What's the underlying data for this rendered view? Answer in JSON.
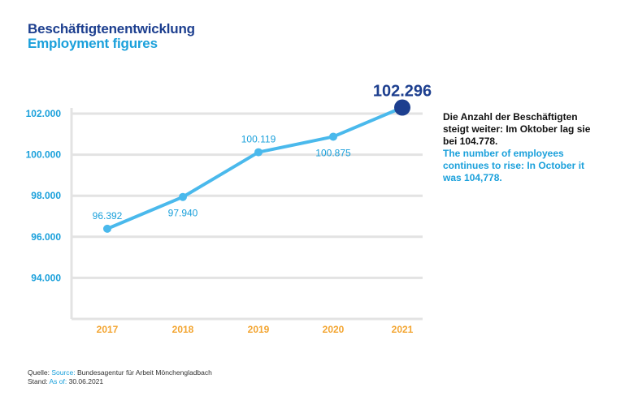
{
  "title_de": "Beschäftigtenentwicklung",
  "title_en": "Employment figures",
  "note": {
    "de": "Die Anzahl der Beschäftigten steigt weiter: Im Oktober lag sie bei 104.778.",
    "en": "The number of employees continues to rise: In October it was 104,778."
  },
  "footer": {
    "source_label_de": "Quelle:",
    "source_label_en": "Source:",
    "source_value": "Bundesagentur für Arbeit Mönchengladbach",
    "date_label_de": "Stand:",
    "date_label_en": "As of:",
    "date_value": "30.06.2021"
  },
  "colors": {
    "line": "#4ab9ec",
    "highlight": "#1d3f8f",
    "year_label": "#f3a531",
    "tick_label": "#1aa0db",
    "grid": "#e3e3e3"
  },
  "chart_data": {
    "type": "line",
    "title": "Beschäftigtenentwicklung",
    "subtitle": "Employment figures",
    "categories": [
      "2017",
      "2018",
      "2019",
      "2020",
      "2021"
    ],
    "values": [
      96392,
      97940,
      100119,
      100875,
      102296
    ],
    "data_labels": [
      "96.392",
      "97.940",
      "100.119",
      "100.875",
      "102.296"
    ],
    "yticks": [
      94000,
      96000,
      98000,
      100000,
      102000
    ],
    "ytick_labels": [
      "94.000",
      "96.000",
      "98.000",
      "100.000",
      "102.000"
    ],
    "ylim": [
      92000,
      102000
    ],
    "grid": true,
    "highlight_last": true
  }
}
